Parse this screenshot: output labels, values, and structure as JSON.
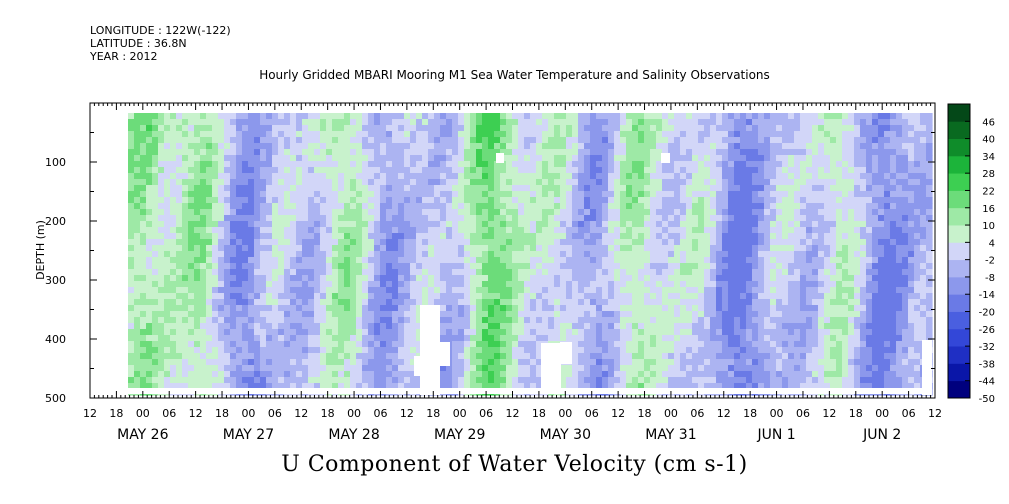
{
  "header": {
    "longitude": "LONGITUDE : 122W(-122)",
    "latitude": "LATITUDE : 36.8N",
    "year": "YEAR : 2012"
  },
  "chart_data": {
    "type": "heatmap",
    "title": "Hourly Gridded MBARI Mooring M1 Sea Water Temperature and Salinity Observations",
    "xlabel": "U Component of Water Velocity (cm s-1)",
    "ylabel": "DEPTH (m)",
    "ylim": [
      500,
      0
    ],
    "y_ticks": [
      100,
      200,
      300,
      400,
      500
    ],
    "x_hour_ticks": [
      "12",
      "18",
      "00",
      "06",
      "12",
      "18",
      "00",
      "06",
      "12",
      "18",
      "00",
      "06",
      "12",
      "18",
      "00",
      "06",
      "12",
      "18",
      "00",
      "06",
      "12",
      "18",
      "00",
      "06",
      "12",
      "18",
      "00",
      "06",
      "12",
      "18",
      "00",
      "06",
      "12"
    ],
    "x_day_labels": [
      "MAY 26",
      "MAY 27",
      "MAY 28",
      "MAY 29",
      "MAY 30",
      "MAY 31",
      "JUN  1",
      "JUN  2"
    ],
    "colorbar_levels": [
      -50,
      -44,
      -38,
      -32,
      -26,
      -20,
      -14,
      -8,
      -2,
      4,
      10,
      16,
      22,
      28,
      34,
      40,
      46
    ],
    "colorbar_colors": [
      "#00007e",
      "#0a16a8",
      "#1f2fc4",
      "#3347d8",
      "#4a5fe0",
      "#6a7ae6",
      "#8c98ec",
      "#acb4f2",
      "#d2d6f8",
      "#c8f2cc",
      "#9ee9a6",
      "#6cdc7a",
      "#3dcf52",
      "#1cb43a",
      "#0f8c2a",
      "#096a20",
      "#044818"
    ],
    "data_range": [
      -20,
      22
    ],
    "missing_regions": [
      "MAY 29 06-12, 350-500 m",
      "MAY 29 21, ~90 m",
      "MAY 30 06-12, 400-500 m",
      "MAY 31 09, ~90 m"
    ]
  }
}
